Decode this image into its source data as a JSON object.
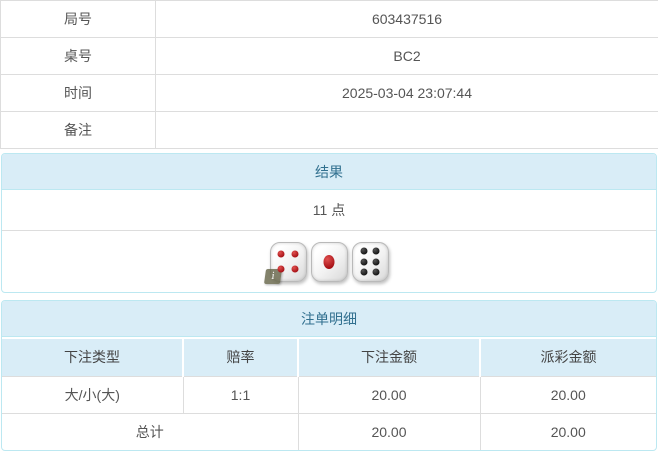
{
  "info": {
    "rows": [
      {
        "label": "局号",
        "value": "603437516"
      },
      {
        "label": "桌号",
        "value": "BC2"
      },
      {
        "label": "时间",
        "value": "2025-03-04 23:07:44"
      },
      {
        "label": "备注",
        "value": ""
      }
    ]
  },
  "result": {
    "header": "结果",
    "points": "11 点",
    "dice": [
      {
        "value": 4,
        "color": "red"
      },
      {
        "value": 1,
        "color": "red"
      },
      {
        "value": 6,
        "color": "black"
      }
    ],
    "info_badge": "i"
  },
  "bets": {
    "header": "注单明细",
    "columns": [
      "下注类型",
      "赔率",
      "下注金额",
      "派彩金额"
    ],
    "rows": [
      {
        "type": "大/小(大)",
        "odds": "1:1",
        "bet_amount": "20.00",
        "payout_amount": "20.00"
      }
    ],
    "total": {
      "label": "总计",
      "bet_amount": "20.00",
      "payout_amount": "20.00"
    }
  },
  "colors": {
    "panel_header_bg": "#d9edf7",
    "panel_border": "#bce8f1",
    "panel_header_text": "#31708f",
    "odds_red": "#d9534f",
    "row_border": "#dddddd",
    "body_text": "#555555"
  }
}
